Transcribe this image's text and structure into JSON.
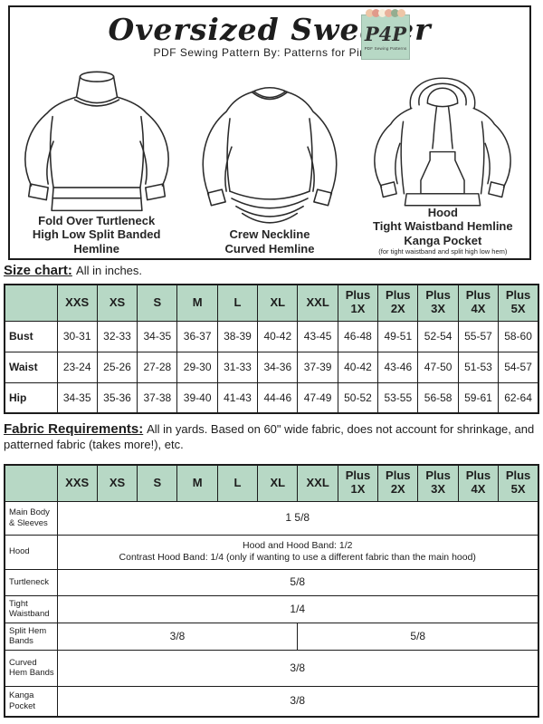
{
  "page": {
    "title": "Oversized Sweater",
    "subtitle": "PDF Sewing Pattern  By: Patterns for Pirates"
  },
  "logo": {
    "monogram": "P4P",
    "caption": "PDF Sewing Patterns"
  },
  "garment_styles": [
    {
      "caption_lines": [
        "Fold Over Turtleneck",
        "High Low Split Banded Hemline"
      ],
      "note": ""
    },
    {
      "caption_lines": [
        "Crew Neckline",
        "Curved Hemline"
      ],
      "note": ""
    },
    {
      "caption_lines": [
        "Hood",
        "Tight Waistband Hemline",
        "Kanga Pocket"
      ],
      "note": "(for tight waistband and split high low hem)"
    }
  ],
  "size_chart": {
    "heading": "Size chart:",
    "note": "All in inches.",
    "columns": [
      "XXS",
      "XS",
      "S",
      "M",
      "L",
      "XL",
      "XXL",
      "Plus 1X",
      "Plus 2X",
      "Plus 3X",
      "Plus 4X",
      "Plus 5X"
    ],
    "rows": [
      {
        "label": "Bust",
        "values": [
          "30-31",
          "32-33",
          "34-35",
          "36-37",
          "38-39",
          "40-42",
          "43-45",
          "46-48",
          "49-51",
          "52-54",
          "55-57",
          "58-60"
        ]
      },
      {
        "label": "Waist",
        "values": [
          "23-24",
          "25-26",
          "27-28",
          "29-30",
          "31-33",
          "34-36",
          "37-39",
          "40-42",
          "43-46",
          "47-50",
          "51-53",
          "54-57"
        ]
      },
      {
        "label": "Hip",
        "values": [
          "34-35",
          "35-36",
          "37-38",
          "39-40",
          "41-43",
          "44-46",
          "47-49",
          "50-52",
          "53-55",
          "56-58",
          "59-61",
          "62-64"
        ]
      }
    ]
  },
  "fabric_requirements": {
    "heading": "Fabric Requirements:",
    "note": "All in yards. Based on 60\" wide fabric, does not account for shrinkage, and patterned fabric (takes more!), etc.",
    "columns": [
      "XXS",
      "XS",
      "S",
      "M",
      "L",
      "XL",
      "XXL",
      "Plus 1X",
      "Plus 2X",
      "Plus 3X",
      "Plus 4X",
      "Plus 5X"
    ],
    "rows": [
      {
        "label": "Main Body & Sleeves",
        "cells": [
          {
            "span": 12,
            "lines": [
              "1 5/8"
            ]
          }
        ]
      },
      {
        "label": "Hood",
        "cells": [
          {
            "span": 12,
            "lines": [
              "Hood and Hood Band: 1/2",
              "Contrast Hood Band: 1/4 (only if wanting to use a different fabric than the main hood)"
            ]
          }
        ]
      },
      {
        "label": "Turtleneck",
        "cells": [
          {
            "span": 12,
            "lines": [
              "5/8"
            ]
          }
        ]
      },
      {
        "label": "Tight Waistband",
        "cells": [
          {
            "span": 12,
            "lines": [
              "1/4"
            ]
          }
        ]
      },
      {
        "label": "Split Hem Bands",
        "cells": [
          {
            "span": 6,
            "lines": [
              "3/8"
            ]
          },
          {
            "span": 6,
            "lines": [
              "5/8"
            ]
          }
        ]
      },
      {
        "label": "Curved Hem Bands",
        "cells": [
          {
            "span": 12,
            "lines": [
              "3/8"
            ]
          }
        ]
      },
      {
        "label": "Kanga Pocket",
        "cells": [
          {
            "span": 12,
            "lines": [
              "3/8"
            ]
          }
        ]
      }
    ]
  },
  "colors": {
    "accent_mint": "#b7d8c5",
    "line": "#1c1c1c"
  }
}
